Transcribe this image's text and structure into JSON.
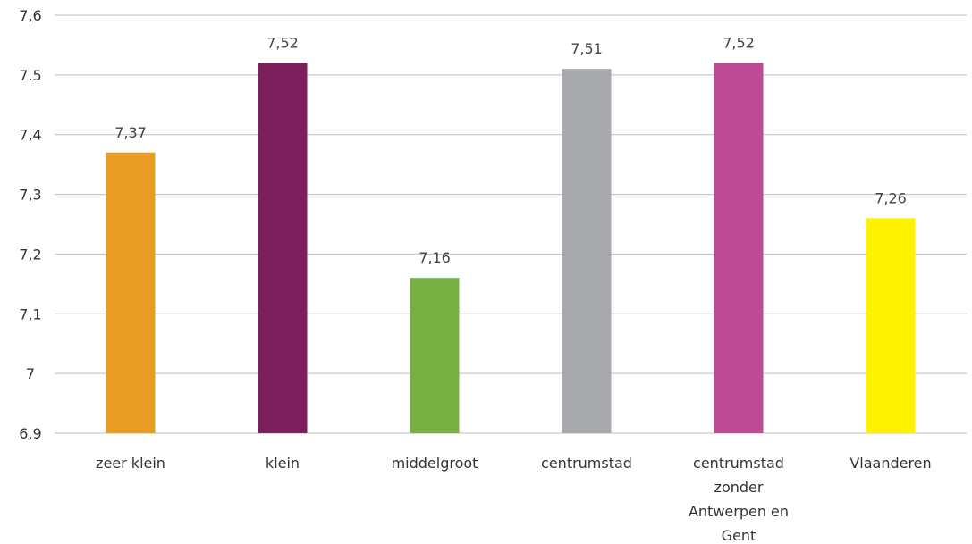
{
  "chart_data": {
    "type": "bar",
    "title": "",
    "xlabel": "",
    "ylabel": "",
    "categories": [
      [
        "zeer klein"
      ],
      [
        "klein"
      ],
      [
        "middelgroot"
      ],
      [
        "centrumstad"
      ],
      [
        "centrumstad",
        "zonder",
        "Antwerpen en",
        "Gent"
      ],
      [
        "Vlaanderen"
      ]
    ],
    "values": [
      7.37,
      7.52,
      7.16,
      7.51,
      7.52,
      7.26
    ],
    "value_labels": [
      "7,37",
      "7,52",
      "7,16",
      "7,51",
      "7,52",
      "7,26"
    ],
    "colors": [
      "#E89C24",
      "#7D1F5C",
      "#76B043",
      "#A7A9AC",
      "#BD4A95",
      "#FFF200"
    ],
    "ylim": [
      6.9,
      7.6
    ],
    "yticks": [
      6.9,
      7.0,
      7.1,
      7.2,
      7.3,
      7.4,
      7.5,
      7.6
    ],
    "ytick_labels": [
      "6,9",
      "7",
      "7,1",
      "7,2",
      "7,3",
      "7,4",
      "7.5",
      "7,6"
    ],
    "grid": true,
    "legend": "none"
  }
}
